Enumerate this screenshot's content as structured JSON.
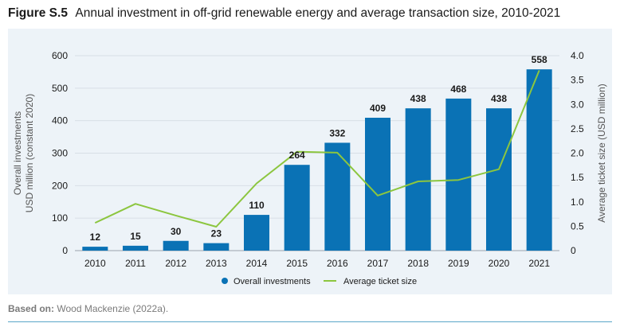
{
  "figure": {
    "label": "Figure S.5",
    "title": "Annual investment in off-grid renewable energy and average transaction size, 2010-2021"
  },
  "source": {
    "prefix": "Based on:",
    "text": "Wood Mackenzie (2022a)."
  },
  "colors": {
    "bar": "#0a72b5",
    "line": "#8cc63f",
    "panel": "#edf3f8",
    "grid": "#d8dfe6"
  },
  "chart_data": {
    "type": "bar",
    "categories": [
      "2010",
      "2011",
      "2012",
      "2013",
      "2014",
      "2015",
      "2016",
      "2017",
      "2018",
      "2019",
      "2020",
      "2021"
    ],
    "series": [
      {
        "name": "Overall investments",
        "type": "bar",
        "axis": "left",
        "values": [
          12,
          15,
          30,
          23,
          110,
          264,
          332,
          409,
          438,
          468,
          438,
          558
        ],
        "labels": [
          "12",
          "15",
          "30",
          "23",
          "110",
          "264",
          "332",
          "409",
          "438",
          "468",
          "438",
          "558"
        ]
      },
      {
        "name": "Average ticket size",
        "type": "line",
        "axis": "right",
        "values": [
          0.57,
          0.96,
          0.72,
          0.49,
          1.38,
          2.03,
          2.01,
          1.13,
          1.42,
          1.45,
          1.67,
          3.7
        ]
      }
    ],
    "ylabel": [
      "Overall investments",
      "USD million (constant 2020)"
    ],
    "y2label": "Average ticket size (USD million)",
    "ylim": [
      0,
      600
    ],
    "y2lim": [
      0,
      4.0
    ],
    "yticks": [
      "0",
      "100",
      "200",
      "300",
      "400",
      "500",
      "600"
    ],
    "y2ticks": [
      "0",
      "0.5",
      "1.0",
      "1.5",
      "2.0",
      "2.5",
      "3.0",
      "3.5",
      "4.0"
    ],
    "grid": true,
    "legend": "bottom-center"
  }
}
